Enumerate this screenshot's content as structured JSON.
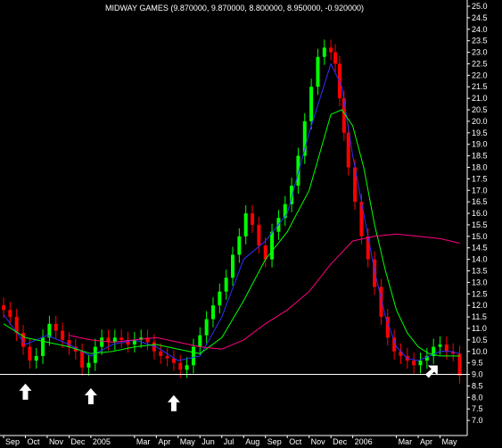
{
  "chart_data": {
    "type": "line",
    "title": "MIDWAY GAMES (9.870000, 9.870000, 8.800000, 8.950000, -0.920000)",
    "chart_style": "candlestick price chart with moving averages",
    "background": "#000000",
    "grid": false,
    "y_axis": {
      "position": "right",
      "ylim": [
        6.5,
        25.0
      ],
      "step": 0.5,
      "ticks": [
        "7.0",
        "7.5",
        "8.0",
        "8.5",
        "9.0",
        "9.5",
        "10.0",
        "10.5",
        "11.0",
        "11.5",
        "12.0",
        "12.5",
        "13.0",
        "13.5",
        "14.0",
        "14.5",
        "15.0",
        "15.5",
        "16.0",
        "16.5",
        "17.0",
        "17.5",
        "18.0",
        "18.5",
        "19.0",
        "19.5",
        "20.0",
        "20.5",
        "21.0",
        "21.5",
        "22.0",
        "22.5",
        "23.0",
        "23.5",
        "24.0",
        "24.5",
        "25.0"
      ]
    },
    "x_axis": {
      "xlim": [
        0,
        21
      ],
      "ticks": [
        {
          "label": "Sep",
          "x": 0
        },
        {
          "label": "Oct",
          "x": 1
        },
        {
          "label": "Nov",
          "x": 2
        },
        {
          "label": "Dec",
          "x": 3
        },
        {
          "label": "2005",
          "x": 4
        },
        {
          "label": "Mar",
          "x": 6
        },
        {
          "label": "Apr",
          "x": 7
        },
        {
          "label": "May",
          "x": 8
        },
        {
          "label": "Jun",
          "x": 9
        },
        {
          "label": "Jul",
          "x": 10
        },
        {
          "label": "Aug",
          "x": 11
        },
        {
          "label": "Sep",
          "x": 12
        },
        {
          "label": "Oct",
          "x": 13
        },
        {
          "label": "Nov",
          "x": 14
        },
        {
          "label": "Dec",
          "x": 15
        },
        {
          "label": "2006",
          "x": 16
        },
        {
          "label": "Mar",
          "x": 18
        },
        {
          "label": "Apr",
          "x": 19
        },
        {
          "label": "May",
          "x": 20
        }
      ]
    },
    "price": {
      "up_color": "#00ff00",
      "down_color": "#ff0000",
      "x": [
        0,
        0.3,
        0.6,
        0.9,
        1.2,
        1.5,
        1.8,
        2.1,
        2.4,
        2.7,
        3.0,
        3.3,
        3.6,
        3.9,
        4.2,
        4.5,
        4.8,
        5.1,
        5.4,
        5.7,
        6.0,
        6.3,
        6.6,
        6.9,
        7.2,
        7.5,
        7.8,
        8.1,
        8.4,
        8.7,
        9.0,
        9.3,
        9.6,
        9.9,
        10.2,
        10.5,
        10.8,
        11.1,
        11.4,
        11.7,
        12.0,
        12.3,
        12.6,
        12.9,
        13.2,
        13.5,
        13.8,
        14.1,
        14.4,
        14.7,
        15.0,
        15.2,
        15.4,
        15.6,
        15.8,
        16.1,
        16.4,
        16.7,
        17.0,
        17.3,
        17.6,
        17.9,
        18.2,
        18.5,
        18.8,
        19.1,
        19.4,
        19.7,
        20.0,
        20.3,
        20.6,
        20.9
      ],
      "close": [
        11.8,
        11.5,
        10.8,
        10.2,
        9.6,
        9.8,
        10.6,
        11.2,
        10.9,
        10.5,
        10.2,
        10.0,
        9.3,
        9.5,
        10.2,
        10.6,
        10.4,
        10.6,
        10.5,
        10.3,
        10.5,
        10.6,
        10.4,
        10.0,
        9.8,
        9.7,
        9.5,
        9.2,
        9.4,
        10.2,
        10.7,
        11.4,
        12.0,
        12.6,
        13.2,
        14.2,
        15.0,
        16.0,
        15.5,
        14.6,
        14.0,
        15.2,
        15.8,
        16.4,
        17.2,
        18.5,
        20.0,
        21.5,
        22.8,
        23.2,
        23.0,
        22.5,
        21.0,
        19.5,
        18.0,
        16.5,
        15.0,
        14.0,
        12.8,
        11.5,
        10.6,
        10.0,
        9.8,
        9.6,
        9.4,
        9.6,
        9.8,
        10.2,
        10.3,
        10.0,
        9.9,
        8.95
      ]
    },
    "series": [
      {
        "color": "#3030ff",
        "x": [
          0,
          1,
          2,
          3,
          4,
          5,
          6,
          7,
          8,
          9,
          10,
          11,
          12,
          13,
          14,
          15,
          15.5,
          16,
          16.5,
          17,
          17.5,
          18,
          18.5,
          19,
          19.5,
          20,
          20.5,
          20.9
        ],
        "values": [
          11.6,
          10.3,
          10.7,
          10.3,
          9.8,
          10.3,
          10.5,
          10.2,
          9.6,
          9.8,
          11.5,
          14.0,
          14.8,
          16.0,
          19.5,
          22.5,
          21.5,
          18.5,
          16.0,
          13.5,
          11.5,
          10.2,
          9.7,
          9.6,
          9.8,
          10.0,
          10.0,
          9.9
        ]
      },
      {
        "color": "#00ff00",
        "x": [
          0,
          1,
          2,
          3,
          4,
          5,
          6,
          7,
          8,
          9,
          10,
          11,
          12,
          13,
          14,
          15,
          15.5,
          16,
          16.5,
          17,
          17.5,
          18,
          18.5,
          19,
          19.5,
          20,
          20.5,
          20.9
        ],
        "values": [
          11.2,
          10.6,
          10.4,
          10.2,
          9.9,
          10.0,
          10.2,
          10.3,
          10.1,
          9.9,
          10.6,
          12.2,
          14.0,
          15.2,
          17.0,
          20.3,
          20.5,
          19.8,
          18.0,
          15.5,
          13.5,
          11.8,
          10.8,
          10.2,
          9.9,
          9.8,
          9.8,
          9.8
        ]
      },
      {
        "color": "#ff0080",
        "x": [
          3,
          4,
          5,
          6,
          7,
          8,
          9,
          10,
          11,
          12,
          13,
          14,
          15,
          16,
          17,
          18,
          19,
          20,
          20.9
        ],
        "values": [
          10.7,
          10.5,
          10.4,
          10.5,
          10.6,
          10.4,
          10.2,
          10.1,
          10.5,
          11.2,
          11.8,
          12.6,
          13.8,
          14.8,
          15.0,
          15.1,
          15.0,
          14.9,
          14.7
        ]
      }
    ],
    "reference_line": {
      "y": 9.0,
      "color": "#ffffff"
    },
    "annotations": [
      {
        "type": "up-arrow",
        "x": 1.0,
        "y": 8.6
      },
      {
        "type": "up-arrow",
        "x": 4.0,
        "y": 8.4
      },
      {
        "type": "up-arrow",
        "x": 7.8,
        "y": 8.1
      },
      {
        "type": "diagonal-arrow",
        "x": 19.4,
        "y": 9.0
      }
    ]
  }
}
